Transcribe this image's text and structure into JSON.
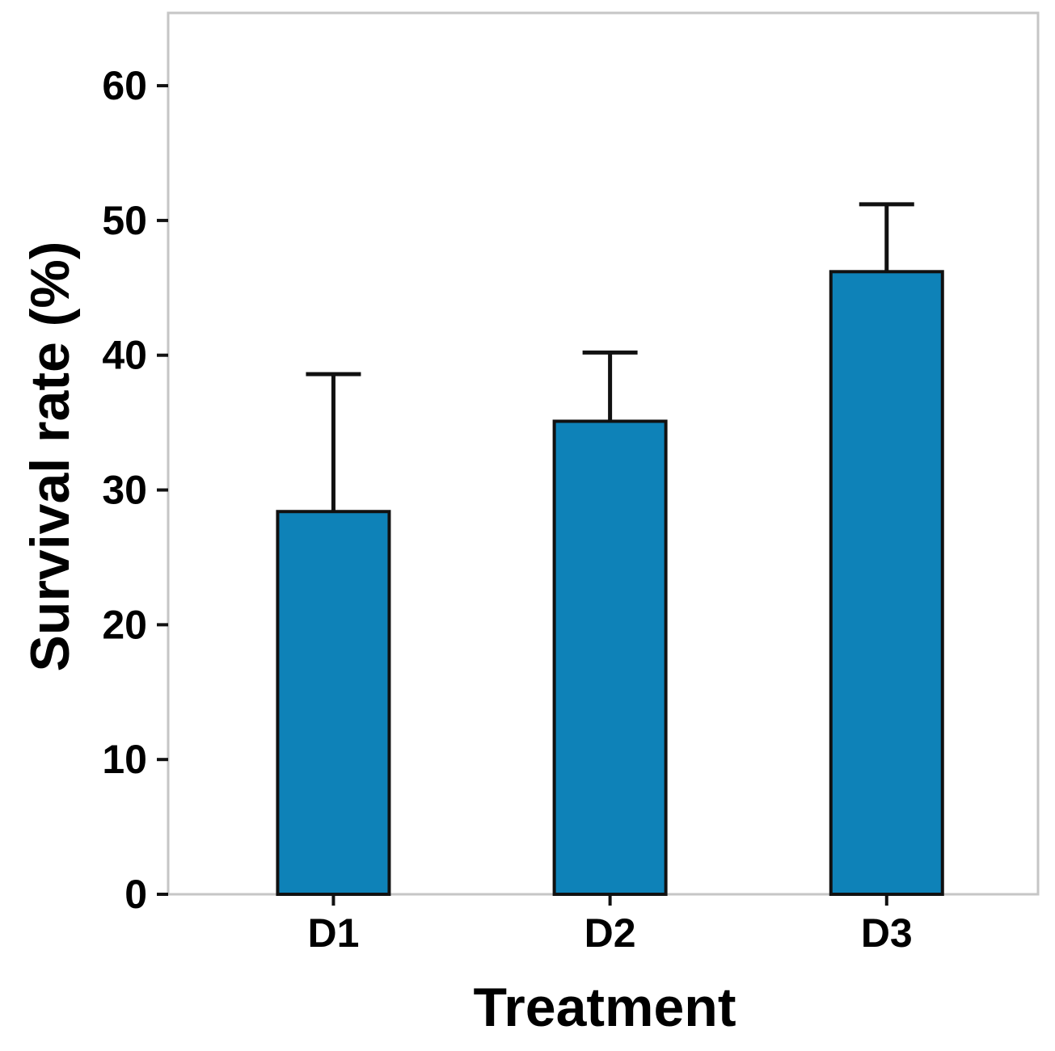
{
  "chart_data": {
    "type": "bar",
    "title": "",
    "categories": [
      "D1",
      "D2",
      "D3"
    ],
    "values": [
      28.4,
      35.1,
      46.2
    ],
    "errors_plus": [
      10.2,
      5.1,
      5.0
    ],
    "xlabel": "Treatment",
    "ylabel": "Survival rate (%)",
    "ylim": [
      0,
      65.4
    ],
    "yticks": [
      0,
      10,
      20,
      30,
      40,
      50,
      60
    ],
    "grid": false,
    "legend_position": "none",
    "colors": {
      "bar_fill": "#0e82b8",
      "bar_edge": "#111111",
      "error_bar": "#111111",
      "frame": "#c6c6c6",
      "tick": "#111111",
      "text": "#000000",
      "background": "#ffffff"
    }
  }
}
